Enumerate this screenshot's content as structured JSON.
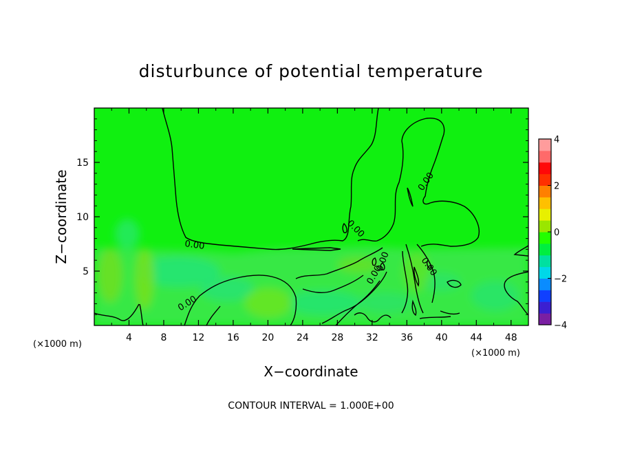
{
  "chart_data": {
    "type": "heatmap",
    "title": "disturbunce of potential temperature",
    "xlabel": "X−coordinate",
    "ylabel": "Z−coordinate",
    "x_unit_label": "(×1000 m)",
    "x_unit_label_right": "(×1000 m)",
    "xlim": [
      0,
      50
    ],
    "ylim": [
      0,
      20
    ],
    "x_ticks": [
      4,
      8,
      12,
      16,
      20,
      24,
      28,
      32,
      36,
      40,
      44,
      48
    ],
    "y_ticks": [
      5,
      10,
      15
    ],
    "colorbar": {
      "range": [
        -4,
        4
      ],
      "ticks": [
        4,
        2,
        0,
        -2,
        -4
      ],
      "tick_labels": [
        "4",
        "2",
        "0",
        "−2",
        "−4"
      ],
      "colors": [
        "#7a1fa2",
        "#3b1fd1",
        "#1040ff",
        "#0a8cff",
        "#00d8e8",
        "#00e0a0",
        "#00ee40",
        "#22ff00",
        "#9ae600",
        "#e8f000",
        "#ffc000",
        "#ff8000",
        "#ff3000",
        "#ff0808",
        "#ff6a6a",
        "#ff9c9c"
      ]
    },
    "base_color": "#10f010",
    "contour_labels": [
      "0.00",
      "0.00",
      "0.00",
      "0.00",
      "0.00",
      "0.00",
      "0.00"
    ],
    "footer": "CONTOUR INTERVAL = 1.000E+00"
  }
}
